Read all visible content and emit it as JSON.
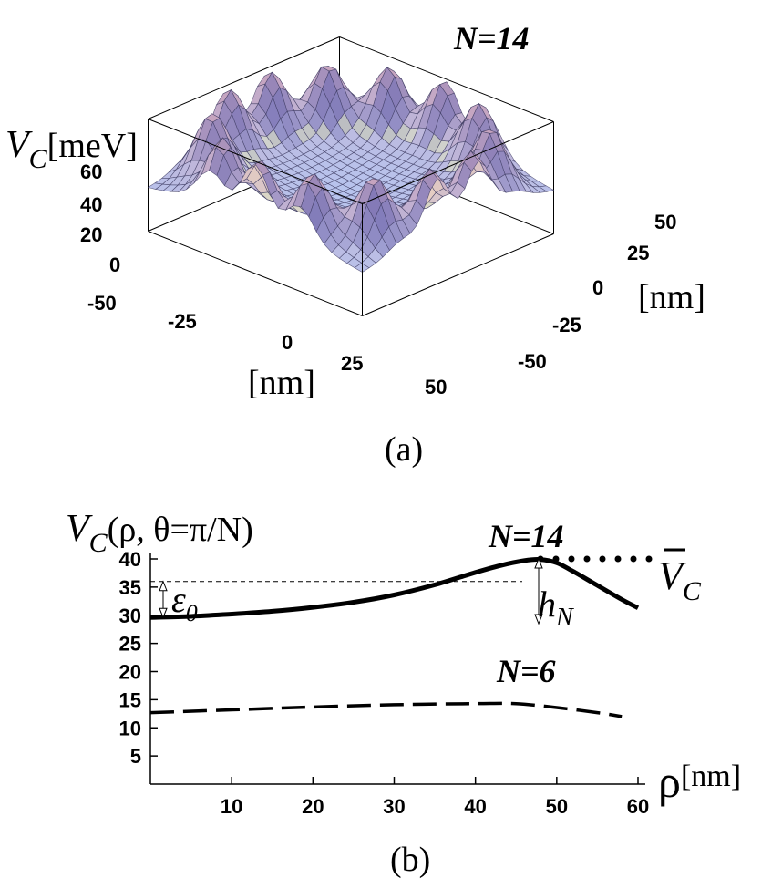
{
  "chart_data": [
    {
      "type": "surface",
      "panel_label": "(a)",
      "title": "N=14",
      "z_label_var": "V",
      "z_label_sub": "C",
      "z_label_unit": "[meV]",
      "z_ticks": [
        "60",
        "40",
        "20",
        "0"
      ],
      "zlim": [
        0,
        60
      ],
      "x_ticks": [
        "-50",
        "-25",
        "0",
        "25",
        "50"
      ],
      "x_label": "[nm]",
      "y_ticks": [
        "50",
        "25",
        "0",
        "-25",
        "-50"
      ],
      "y_label": "[nm]",
      "xlim": [
        -50,
        50
      ],
      "ylim": [
        -50,
        50
      ],
      "n_peaks": 14,
      "peak_radius_nm": 48,
      "center_value": 30,
      "peak_value": 60,
      "colors": {
        "surface_low": "#b8c4ee",
        "surface_high": "#c7a2bc",
        "peak_light": "#ead2c0",
        "valley": "#e8efb8",
        "mesh": "#3d3b62"
      }
    },
    {
      "type": "line",
      "panel_label": "(b)",
      "ylabel_prefix": "V",
      "ylabel_sub": "C",
      "ylabel_args": "(ρ, θ=π/N)",
      "xlabel_symbol": "ρ",
      "xlabel_unit": "[nm]",
      "xlim": [
        0,
        60
      ],
      "ylim": [
        0,
        40
      ],
      "x_ticks": [
        "10",
        "20",
        "30",
        "40",
        "50",
        "60"
      ],
      "y_ticks": [
        "5",
        "10",
        "15",
        "20",
        "25",
        "30",
        "35",
        "40"
      ],
      "series": [
        {
          "name": "N=14",
          "style": "solid",
          "x": [
            0,
            5,
            10,
            15,
            20,
            25,
            30,
            35,
            40,
            43,
            46,
            48,
            50,
            52,
            55,
            58,
            60
          ],
          "y": [
            29.6,
            29.8,
            30.2,
            30.7,
            31.4,
            32.3,
            33.6,
            35.4,
            37.6,
            38.8,
            39.7,
            39.9,
            39.3,
            37.8,
            35.3,
            32.8,
            31.3
          ]
        },
        {
          "name": "N=6",
          "style": "dashed",
          "x": [
            0,
            10,
            20,
            30,
            40,
            45,
            50,
            55,
            58
          ],
          "y": [
            12.7,
            13.2,
            13.7,
            14.1,
            14.3,
            14.3,
            13.6,
            12.7,
            12.0
          ]
        }
      ],
      "vbar_label": "V",
      "vbar_sub": "C",
      "vbar_level": 40,
      "vbar_start_x": 48,
      "epsilon_symbol": "ε",
      "epsilon_sub": "0",
      "epsilon_level": 36,
      "epsilon_base": 29.6,
      "h_symbol": "h",
      "h_sub": "N"
    }
  ]
}
